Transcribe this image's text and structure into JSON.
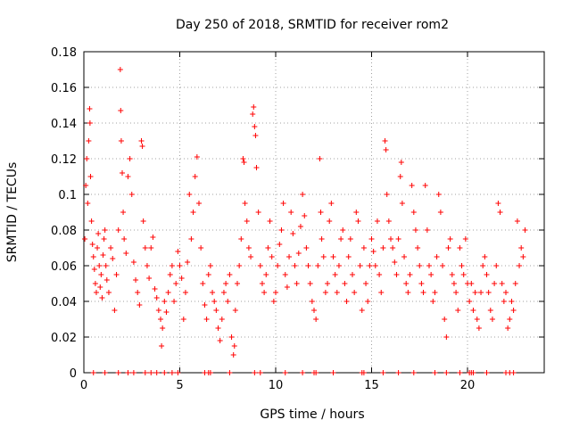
{
  "chart_data": {
    "type": "scatter",
    "title": "Day 250 of 2018, SRMTID for receiver rom2",
    "xlabel": "GPS time / hours",
    "ylabel": "SRMTID / TECUs",
    "xlim": [
      0,
      24
    ],
    "ylim": [
      0,
      0.18
    ],
    "x_ticks": [
      0,
      5,
      10,
      15,
      20
    ],
    "x_tick_labels": [
      "0",
      "5",
      "10",
      "15",
      "20"
    ],
    "y_ticks": [
      0,
      0.02,
      0.04,
      0.06,
      0.08,
      0.1,
      0.12,
      0.14,
      0.16,
      0.18
    ],
    "y_tick_labels": [
      "0",
      "0.02",
      "0.04",
      "0.06",
      "0.08",
      "0.1",
      "0.12",
      "0.14",
      "0.16",
      "0.18"
    ],
    "grid": true,
    "marker": "+",
    "marker_color": "#ff0000",
    "series": [
      {
        "name": "SRMTID",
        "points": [
          [
            0.05,
            0.075
          ],
          [
            0.1,
            0.105
          ],
          [
            0.15,
            0.12
          ],
          [
            0.2,
            0.095
          ],
          [
            0.25,
            0.13
          ],
          [
            0.3,
            0.148
          ],
          [
            0.32,
            0.14
          ],
          [
            0.35,
            0.11
          ],
          [
            0.4,
            0.085
          ],
          [
            0.45,
            0.072
          ],
          [
            0.5,
            0.065
          ],
          [
            0.55,
            0.058
          ],
          [
            0.6,
            0.05
          ],
          [
            0.65,
            0.045
          ],
          [
            0.7,
            0.07
          ],
          [
            0.75,
            0.078
          ],
          [
            0.8,
            0.06
          ],
          [
            0.85,
            0.048
          ],
          [
            0.9,
            0.055
          ],
          [
            0.95,
            0.042
          ],
          [
            1.0,
            0.066
          ],
          [
            1.05,
            0.075
          ],
          [
            1.1,
            0.08
          ],
          [
            1.15,
            0.06
          ],
          [
            1.2,
            0.052
          ],
          [
            1.3,
            0.045
          ],
          [
            1.4,
            0.07
          ],
          [
            1.5,
            0.064
          ],
          [
            1.6,
            0.035
          ],
          [
            1.7,
            0.055
          ],
          [
            1.8,
            0.08
          ],
          [
            1.9,
            0.17
          ],
          [
            1.92,
            0.147
          ],
          [
            1.95,
            0.13
          ],
          [
            2.0,
            0.112
          ],
          [
            2.05,
            0.09
          ],
          [
            2.1,
            0.075
          ],
          [
            2.2,
            0.067
          ],
          [
            2.3,
            0.11
          ],
          [
            2.4,
            0.12
          ],
          [
            2.5,
            0.1
          ],
          [
            2.6,
            0.062
          ],
          [
            2.7,
            0.052
          ],
          [
            2.8,
            0.045
          ],
          [
            2.9,
            0.038
          ],
          [
            3.0,
            0.13
          ],
          [
            3.05,
            0.127
          ],
          [
            3.1,
            0.085
          ],
          [
            3.2,
            0.07
          ],
          [
            3.3,
            0.06
          ],
          [
            3.4,
            0.053
          ],
          [
            3.5,
            0.07
          ],
          [
            3.6,
            0.076
          ],
          [
            3.7,
            0.047
          ],
          [
            3.8,
            0.042
          ],
          [
            3.9,
            0.035
          ],
          [
            4.0,
            0.03
          ],
          [
            4.05,
            0.015
          ],
          [
            4.1,
            0.025
          ],
          [
            4.2,
            0.04
          ],
          [
            4.3,
            0.034
          ],
          [
            4.4,
            0.045
          ],
          [
            4.5,
            0.055
          ],
          [
            4.6,
            0.06
          ],
          [
            4.7,
            0.04
          ],
          [
            4.8,
            0.05
          ],
          [
            4.9,
            0.068
          ],
          [
            5.0,
            0.06
          ],
          [
            5.1,
            0.053
          ],
          [
            5.2,
            0.03
          ],
          [
            5.3,
            0.045
          ],
          [
            5.4,
            0.062
          ],
          [
            5.5,
            0.1
          ],
          [
            5.6,
            0.075
          ],
          [
            5.7,
            0.09
          ],
          [
            5.8,
            0.11
          ],
          [
            5.9,
            0.121
          ],
          [
            6.0,
            0.095
          ],
          [
            6.1,
            0.07
          ],
          [
            6.2,
            0.05
          ],
          [
            6.3,
            0.038
          ],
          [
            6.4,
            0.03
          ],
          [
            6.5,
            0.055
          ],
          [
            6.6,
            0.06
          ],
          [
            6.7,
            0.045
          ],
          [
            6.8,
            0.04
          ],
          [
            6.9,
            0.035
          ],
          [
            7.0,
            0.025
          ],
          [
            7.1,
            0.018
          ],
          [
            7.2,
            0.03
          ],
          [
            7.3,
            0.045
          ],
          [
            7.4,
            0.05
          ],
          [
            7.5,
            0.04
          ],
          [
            7.6,
            0.055
          ],
          [
            7.7,
            0.02
          ],
          [
            7.8,
            0.01
          ],
          [
            7.85,
            0.015
          ],
          [
            7.9,
            0.035
          ],
          [
            8.0,
            0.05
          ],
          [
            8.1,
            0.06
          ],
          [
            8.2,
            0.075
          ],
          [
            8.3,
            0.12
          ],
          [
            8.35,
            0.118
          ],
          [
            8.4,
            0.095
          ],
          [
            8.5,
            0.085
          ],
          [
            8.6,
            0.07
          ],
          [
            8.7,
            0.065
          ],
          [
            8.8,
            0.145
          ],
          [
            8.85,
            0.149
          ],
          [
            8.9,
            0.138
          ],
          [
            8.95,
            0.133
          ],
          [
            9.0,
            0.115
          ],
          [
            9.1,
            0.09
          ],
          [
            9.2,
            0.06
          ],
          [
            9.3,
            0.05
          ],
          [
            9.4,
            0.045
          ],
          [
            9.5,
            0.055
          ],
          [
            9.6,
            0.07
          ],
          [
            9.7,
            0.085
          ],
          [
            9.8,
            0.065
          ],
          [
            9.9,
            0.04
          ],
          [
            10.0,
            0.045
          ],
          [
            10.1,
            0.06
          ],
          [
            10.2,
            0.072
          ],
          [
            10.3,
            0.08
          ],
          [
            10.4,
            0.095
          ],
          [
            10.5,
            0.055
          ],
          [
            10.6,
            0.048
          ],
          [
            10.7,
            0.065
          ],
          [
            10.8,
            0.09
          ],
          [
            10.9,
            0.078
          ],
          [
            11.0,
            0.06
          ],
          [
            11.1,
            0.05
          ],
          [
            11.2,
            0.067
          ],
          [
            11.3,
            0.082
          ],
          [
            11.4,
            0.1
          ],
          [
            11.5,
            0.088
          ],
          [
            11.6,
            0.07
          ],
          [
            11.7,
            0.06
          ],
          [
            11.8,
            0.05
          ],
          [
            11.9,
            0.04
          ],
          [
            12.0,
            0.035
          ],
          [
            12.1,
            0.03
          ],
          [
            12.2,
            0.06
          ],
          [
            12.3,
            0.12
          ],
          [
            12.35,
            0.09
          ],
          [
            12.4,
            0.075
          ],
          [
            12.5,
            0.065
          ],
          [
            12.6,
            0.045
          ],
          [
            12.7,
            0.05
          ],
          [
            12.8,
            0.085
          ],
          [
            12.9,
            0.095
          ],
          [
            13.0,
            0.065
          ],
          [
            13.1,
            0.055
          ],
          [
            13.2,
            0.045
          ],
          [
            13.3,
            0.06
          ],
          [
            13.4,
            0.075
          ],
          [
            13.5,
            0.08
          ],
          [
            13.6,
            0.05
          ],
          [
            13.7,
            0.04
          ],
          [
            13.8,
            0.065
          ],
          [
            13.9,
            0.075
          ],
          [
            14.0,
            0.055
          ],
          [
            14.1,
            0.045
          ],
          [
            14.2,
            0.09
          ],
          [
            14.3,
            0.085
          ],
          [
            14.4,
            0.06
          ],
          [
            14.5,
            0.035
          ],
          [
            14.6,
            0.07
          ],
          [
            14.7,
            0.05
          ],
          [
            14.8,
            0.04
          ],
          [
            14.9,
            0.06
          ],
          [
            15.0,
            0.075
          ],
          [
            15.1,
            0.068
          ],
          [
            15.2,
            0.06
          ],
          [
            15.3,
            0.085
          ],
          [
            15.4,
            0.055
          ],
          [
            15.5,
            0.045
          ],
          [
            15.6,
            0.07
          ],
          [
            15.7,
            0.13
          ],
          [
            15.75,
            0.125
          ],
          [
            15.8,
            0.1
          ],
          [
            15.9,
            0.085
          ],
          [
            16.0,
            0.075
          ],
          [
            16.1,
            0.07
          ],
          [
            16.2,
            0.062
          ],
          [
            16.3,
            0.055
          ],
          [
            16.4,
            0.075
          ],
          [
            16.5,
            0.11
          ],
          [
            16.55,
            0.118
          ],
          [
            16.6,
            0.095
          ],
          [
            16.7,
            0.065
          ],
          [
            16.8,
            0.05
          ],
          [
            16.9,
            0.045
          ],
          [
            17.0,
            0.055
          ],
          [
            17.1,
            0.105
          ],
          [
            17.2,
            0.09
          ],
          [
            17.3,
            0.08
          ],
          [
            17.4,
            0.07
          ],
          [
            17.5,
            0.06
          ],
          [
            17.6,
            0.05
          ],
          [
            17.7,
            0.045
          ],
          [
            17.8,
            0.105
          ],
          [
            17.9,
            0.08
          ],
          [
            18.0,
            0.06
          ],
          [
            18.1,
            0.055
          ],
          [
            18.2,
            0.04
          ],
          [
            18.3,
            0.045
          ],
          [
            18.4,
            0.065
          ],
          [
            18.5,
            0.1
          ],
          [
            18.6,
            0.09
          ],
          [
            18.7,
            0.06
          ],
          [
            18.8,
            0.03
          ],
          [
            18.9,
            0.02
          ],
          [
            19.0,
            0.07
          ],
          [
            19.1,
            0.075
          ],
          [
            19.2,
            0.055
          ],
          [
            19.3,
            0.05
          ],
          [
            19.4,
            0.045
          ],
          [
            19.5,
            0.035
          ],
          [
            19.6,
            0.07
          ],
          [
            19.7,
            0.06
          ],
          [
            19.8,
            0.055
          ],
          [
            19.9,
            0.075
          ],
          [
            20.0,
            0.05
          ],
          [
            20.1,
            0.04
          ],
          [
            20.2,
            0.05
          ],
          [
            20.3,
            0.035
          ],
          [
            20.4,
            0.045
          ],
          [
            20.5,
            0.03
          ],
          [
            20.6,
            0.025
          ],
          [
            20.7,
            0.045
          ],
          [
            20.8,
            0.06
          ],
          [
            20.9,
            0.065
          ],
          [
            21.0,
            0.055
          ],
          [
            21.1,
            0.045
          ],
          [
            21.2,
            0.035
          ],
          [
            21.3,
            0.03
          ],
          [
            21.4,
            0.05
          ],
          [
            21.5,
            0.06
          ],
          [
            21.6,
            0.095
          ],
          [
            21.7,
            0.09
          ],
          [
            21.8,
            0.05
          ],
          [
            21.9,
            0.04
          ],
          [
            22.0,
            0.045
          ],
          [
            22.1,
            0.025
          ],
          [
            22.2,
            0.03
          ],
          [
            22.3,
            0.04
          ],
          [
            22.4,
            0.035
          ],
          [
            22.5,
            0.05
          ],
          [
            22.6,
            0.085
          ],
          [
            22.7,
            0.06
          ],
          [
            22.8,
            0.07
          ],
          [
            22.9,
            0.065
          ],
          [
            23.0,
            0.08
          ],
          [
            0.5,
            0.0
          ],
          [
            1.1,
            0.0
          ],
          [
            1.8,
            0.0
          ],
          [
            2.3,
            0.0
          ],
          [
            2.6,
            0.0
          ],
          [
            3.2,
            0.0
          ],
          [
            3.5,
            0.0
          ],
          [
            3.8,
            0.0
          ],
          [
            4.2,
            0.0
          ],
          [
            4.6,
            0.0
          ],
          [
            4.9,
            0.0
          ],
          [
            6.3,
            0.0
          ],
          [
            6.5,
            0.0
          ],
          [
            6.6,
            0.0
          ],
          [
            7.6,
            0.0
          ],
          [
            8.9,
            0.0
          ],
          [
            9.2,
            0.0
          ],
          [
            10.5,
            0.0
          ],
          [
            11.4,
            0.0
          ],
          [
            12.0,
            0.0
          ],
          [
            12.1,
            0.0
          ],
          [
            13.0,
            0.0
          ],
          [
            14.5,
            0.0
          ],
          [
            14.6,
            0.0
          ],
          [
            15.6,
            0.0
          ],
          [
            16.4,
            0.0
          ],
          [
            17.2,
            0.0
          ],
          [
            18.3,
            0.0
          ],
          [
            18.9,
            0.0
          ],
          [
            19.6,
            0.0
          ],
          [
            20.1,
            0.0
          ],
          [
            20.2,
            0.0
          ],
          [
            20.3,
            0.0
          ],
          [
            21.0,
            0.0
          ],
          [
            22.0,
            0.0
          ],
          [
            22.2,
            0.0
          ],
          [
            22.4,
            0.0
          ]
        ]
      }
    ]
  }
}
